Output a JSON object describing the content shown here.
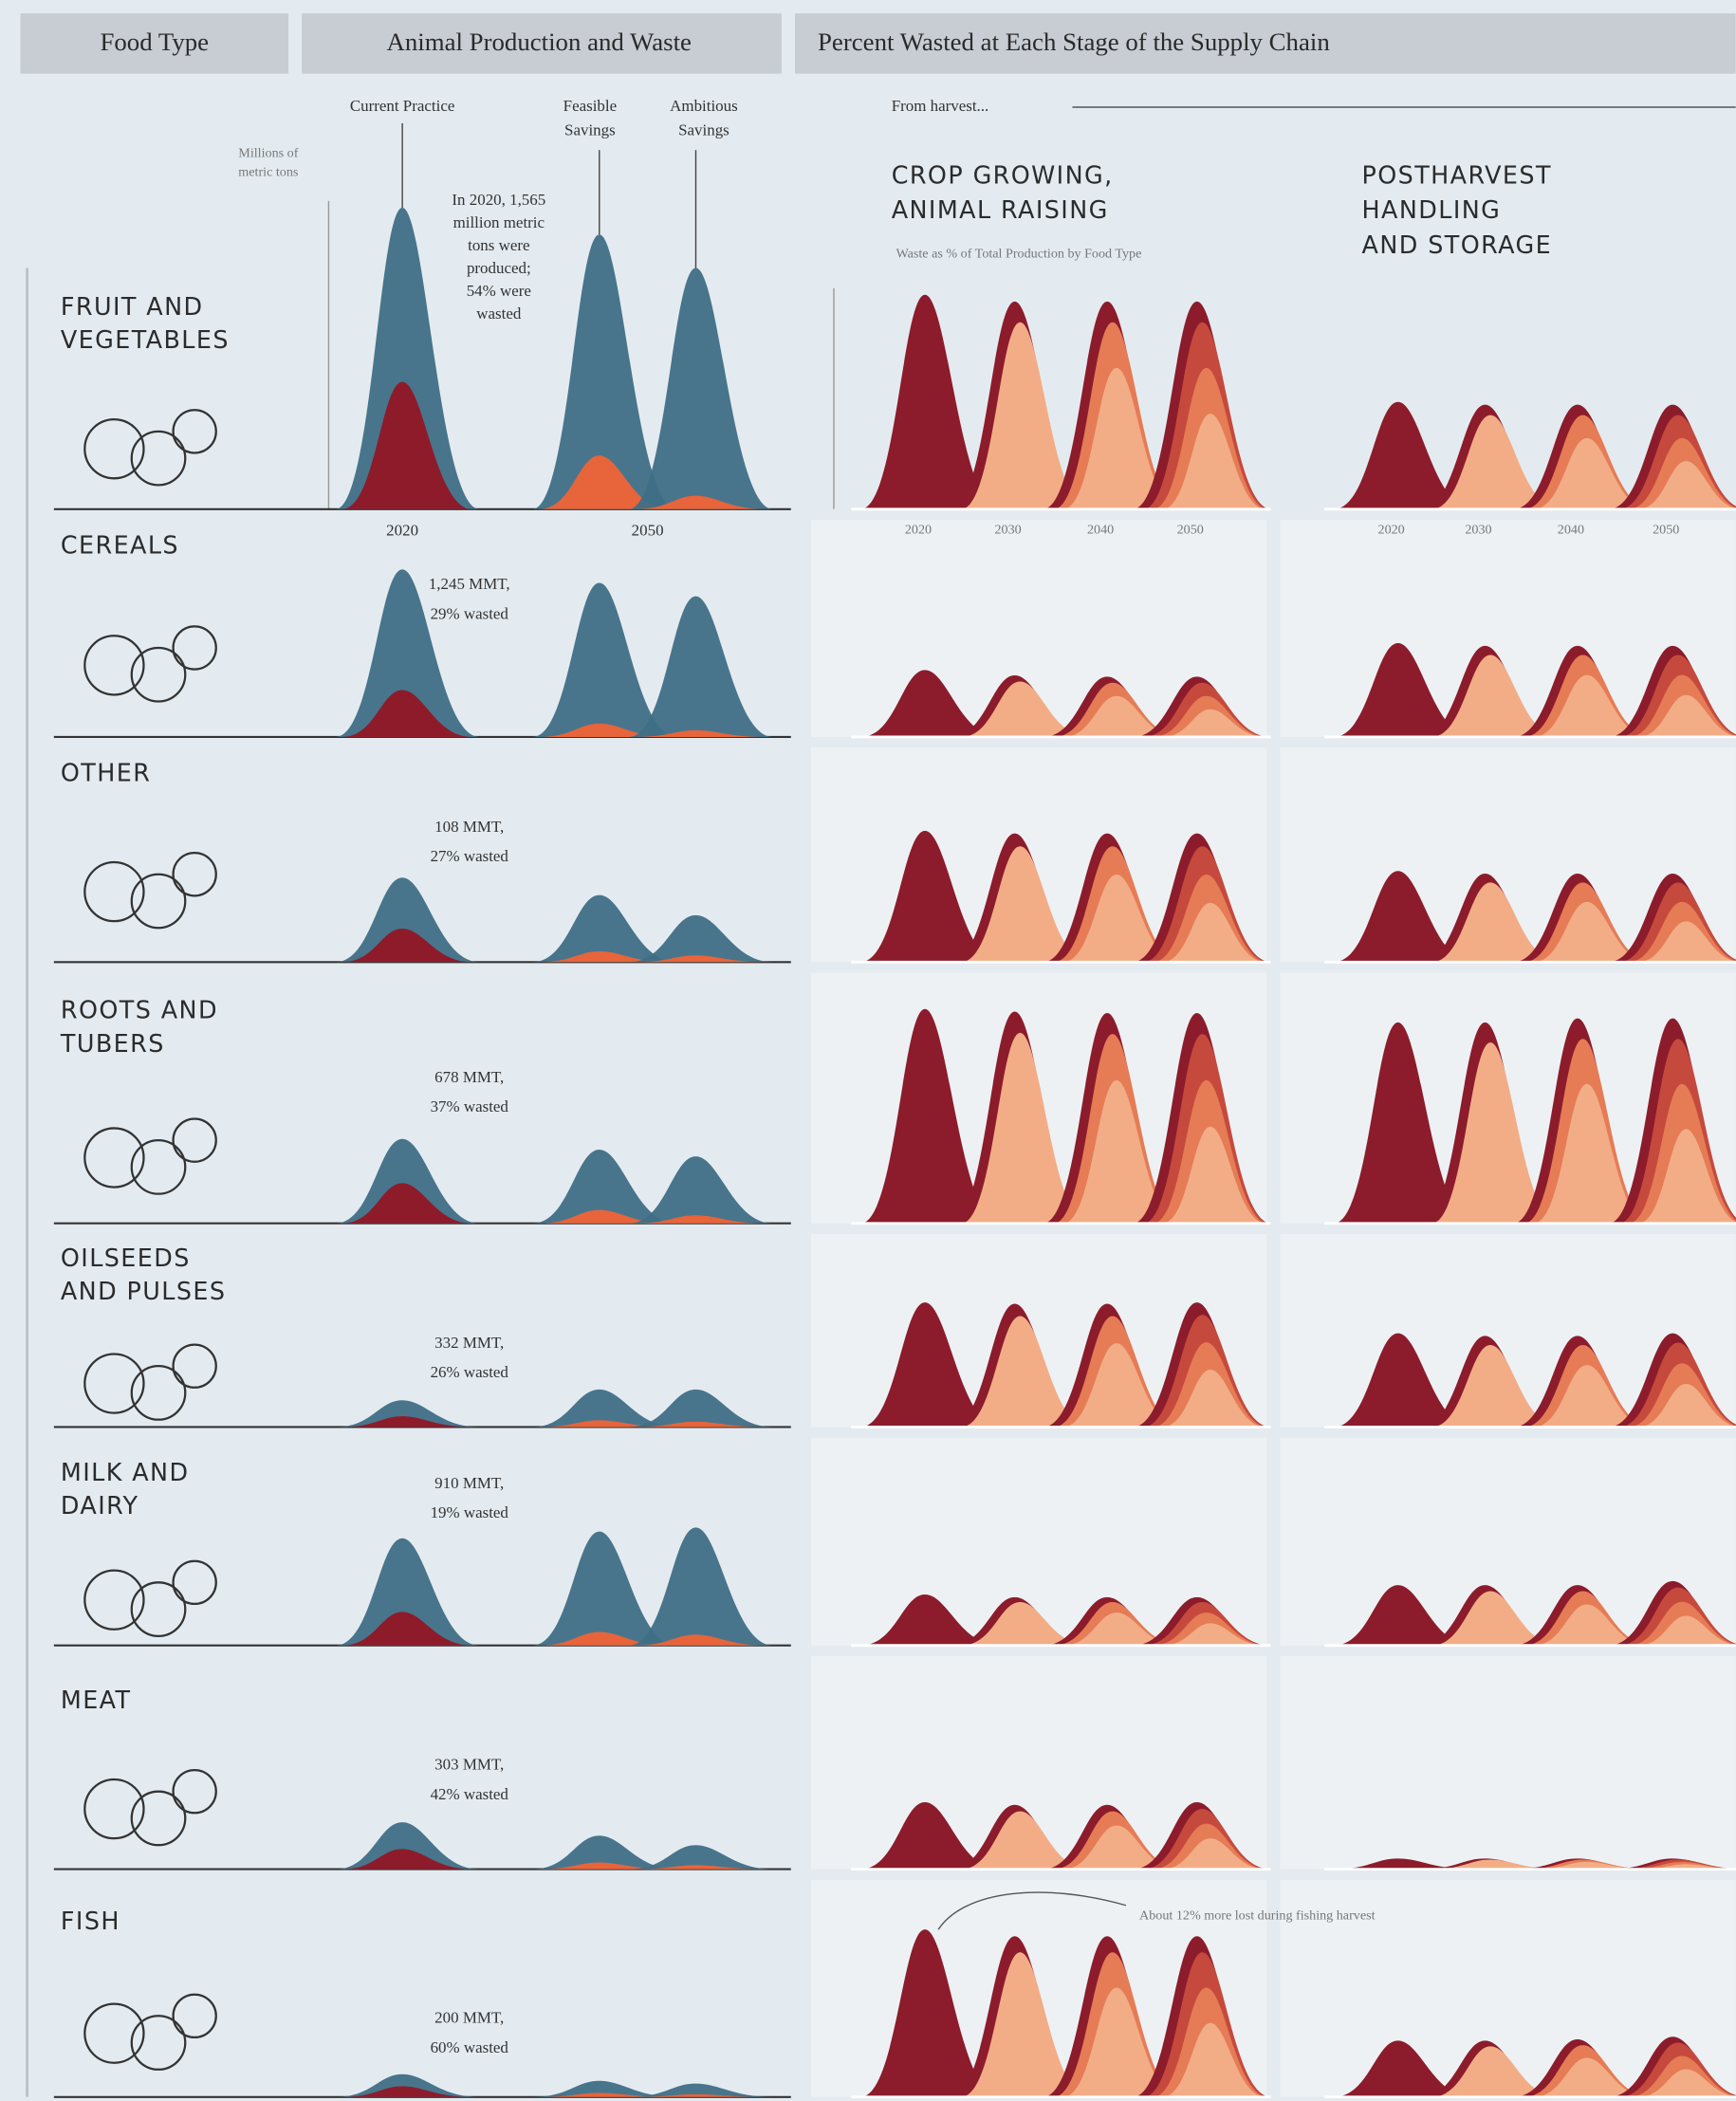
{
  "chart_data": {
    "type": "ridgeline",
    "headers": [
      "Food Type",
      "Animal Production and Waste",
      "Percent Wasted at Each Stage of the Supply Chain"
    ],
    "scenarios": [
      [
        "Current Practice"
      ],
      [
        "Feasible",
        "Savings"
      ],
      [
        "Ambitious",
        "Savings"
      ]
    ],
    "production_axis_label": [
      "Millions of",
      "metric tons"
    ],
    "production_years": [
      "2020",
      "2050"
    ],
    "supply_intro": "From harvest...",
    "stages": [
      [
        "CROP GROWING,",
        "ANIMAL RAISING"
      ],
      [
        "POSTHARVEST",
        "HANDLING",
        "AND STORAGE"
      ]
    ],
    "stage_axis_label": "Waste as % of Total Production by Food Type",
    "stage_years": [
      "2020",
      "2030",
      "2040",
      "2050"
    ],
    "fish_note": "About 12% more lost during fishing harvest",
    "colors": {
      "production": "#3f6f86",
      "waste_current": "#8e1b2a",
      "waste_savings": "#e8643a",
      "stage": "#8c1c2b"
    },
    "rows": [
      {
        "label": [
          "FRUIT AND",
          "VEGETABLES"
        ],
        "note": [
          "In 2020, 1,565",
          "million metric",
          "tons were",
          "produced;",
          "54% were"
        ],
        "note_wasted": "wasted",
        "production": [
          225,
          205,
          180
        ],
        "waste": [
          95,
          40,
          10
        ],
        "crop": [
          160,
          155,
          155,
          155
        ],
        "post": [
          80,
          78,
          78,
          78
        ]
      },
      {
        "label": [
          "CEREALS"
        ],
        "note": [
          "1,245 MMT,"
        ],
        "note_wasted": "29% wasted",
        "production": [
          125,
          115,
          105
        ],
        "waste": [
          35,
          10,
          5
        ],
        "crop": [
          50,
          46,
          45,
          45
        ],
        "post": [
          70,
          68,
          68,
          68
        ]
      },
      {
        "label": [
          "OTHER"
        ],
        "note": [
          "108 MMT,"
        ],
        "note_wasted": "27% wasted",
        "production": [
          63,
          50,
          35
        ],
        "waste": [
          25,
          8,
          5
        ],
        "crop": [
          98,
          96,
          96,
          96
        ],
        "post": [
          68,
          66,
          66,
          66
        ]
      },
      {
        "label": [
          "ROOTS AND",
          "TUBERS"
        ],
        "note": [
          "678 MMT,"
        ],
        "note_wasted": "37% wasted",
        "production": [
          63,
          55,
          50
        ],
        "waste": [
          30,
          10,
          6
        ],
        "crop": [
          160,
          158,
          157,
          157
        ],
        "post": [
          150,
          150,
          153,
          153
        ]
      },
      {
        "label": [
          "OILSEEDS",
          "AND PULSES"
        ],
        "note": [
          "332 MMT,"
        ],
        "note_wasted": "26% wasted",
        "production": [
          20,
          28,
          28
        ],
        "waste": [
          8,
          5,
          4
        ],
        "crop": [
          93,
          92,
          92,
          93
        ],
        "post": [
          70,
          68,
          68,
          70
        ]
      },
      {
        "label": [
          "MILK AND",
          "DAIRY"
        ],
        "note": [
          "910 MMT,"
        ],
        "note_wasted": "19% wasted",
        "production": [
          80,
          85,
          88
        ],
        "waste": [
          25,
          10,
          8
        ],
        "crop": [
          38,
          36,
          36,
          36
        ],
        "post": [
          45,
          45,
          45,
          48
        ]
      },
      {
        "label": [
          "MEAT"
        ],
        "note": [
          "303 MMT,"
        ],
        "note_wasted": "42% wasted",
        "production": [
          35,
          25,
          18
        ],
        "waste": [
          15,
          5,
          3
        ],
        "crop": [
          50,
          48,
          48,
          50
        ],
        "post": [
          8,
          8,
          8,
          8
        ]
      },
      {
        "label": [
          "FISH"
        ],
        "note": [
          "200 MMT,"
        ],
        "note_wasted": "60% wasted",
        "production": [
          17,
          12,
          10
        ],
        "waste": [
          8,
          3,
          2
        ],
        "crop": [
          125,
          120,
          120,
          120
        ],
        "post": [
          42,
          42,
          43,
          45
        ]
      }
    ]
  }
}
